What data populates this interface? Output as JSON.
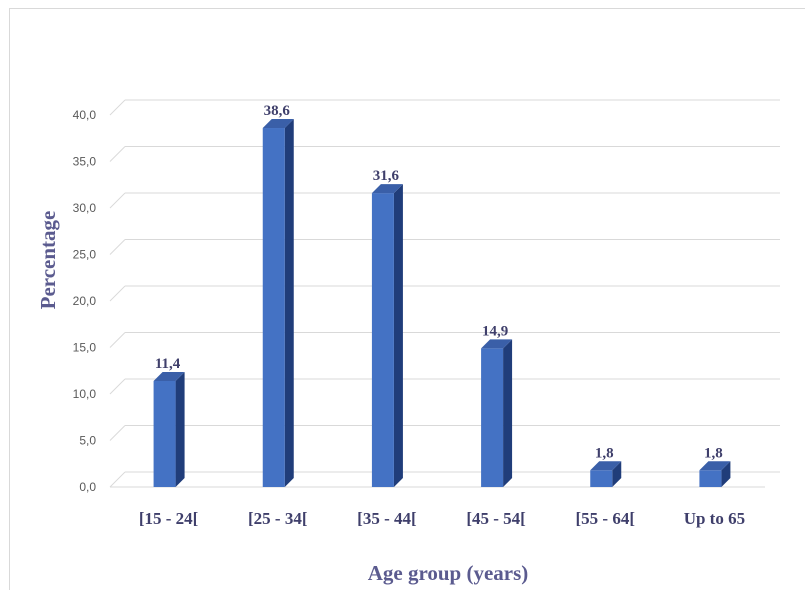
{
  "chart_data": {
    "type": "bar",
    "title": "",
    "xlabel": "Age group (years)",
    "ylabel": "Percentage",
    "categories": [
      "[15 - 24[",
      "[25 - 34[",
      "[35 - 44[",
      "[45 - 54[",
      "[55 - 64[",
      "Up to 65"
    ],
    "values": [
      11.4,
      38.6,
      31.6,
      14.9,
      1.8,
      1.8
    ],
    "value_labels": [
      "11,4",
      "38,6",
      "31,6",
      "14,9",
      "1,8",
      "1,8"
    ],
    "ylim": [
      0,
      40
    ],
    "yticks": [
      "0,0",
      "5,0",
      "10,0",
      "15,0",
      "20,0",
      "25,0",
      "30,0",
      "35,0",
      "40,0"
    ],
    "grid": true,
    "legend": "none",
    "bar_color": "#4472c4",
    "bar_side_color": "#203d7a",
    "bar_top_color": "#3a5fa8"
  }
}
